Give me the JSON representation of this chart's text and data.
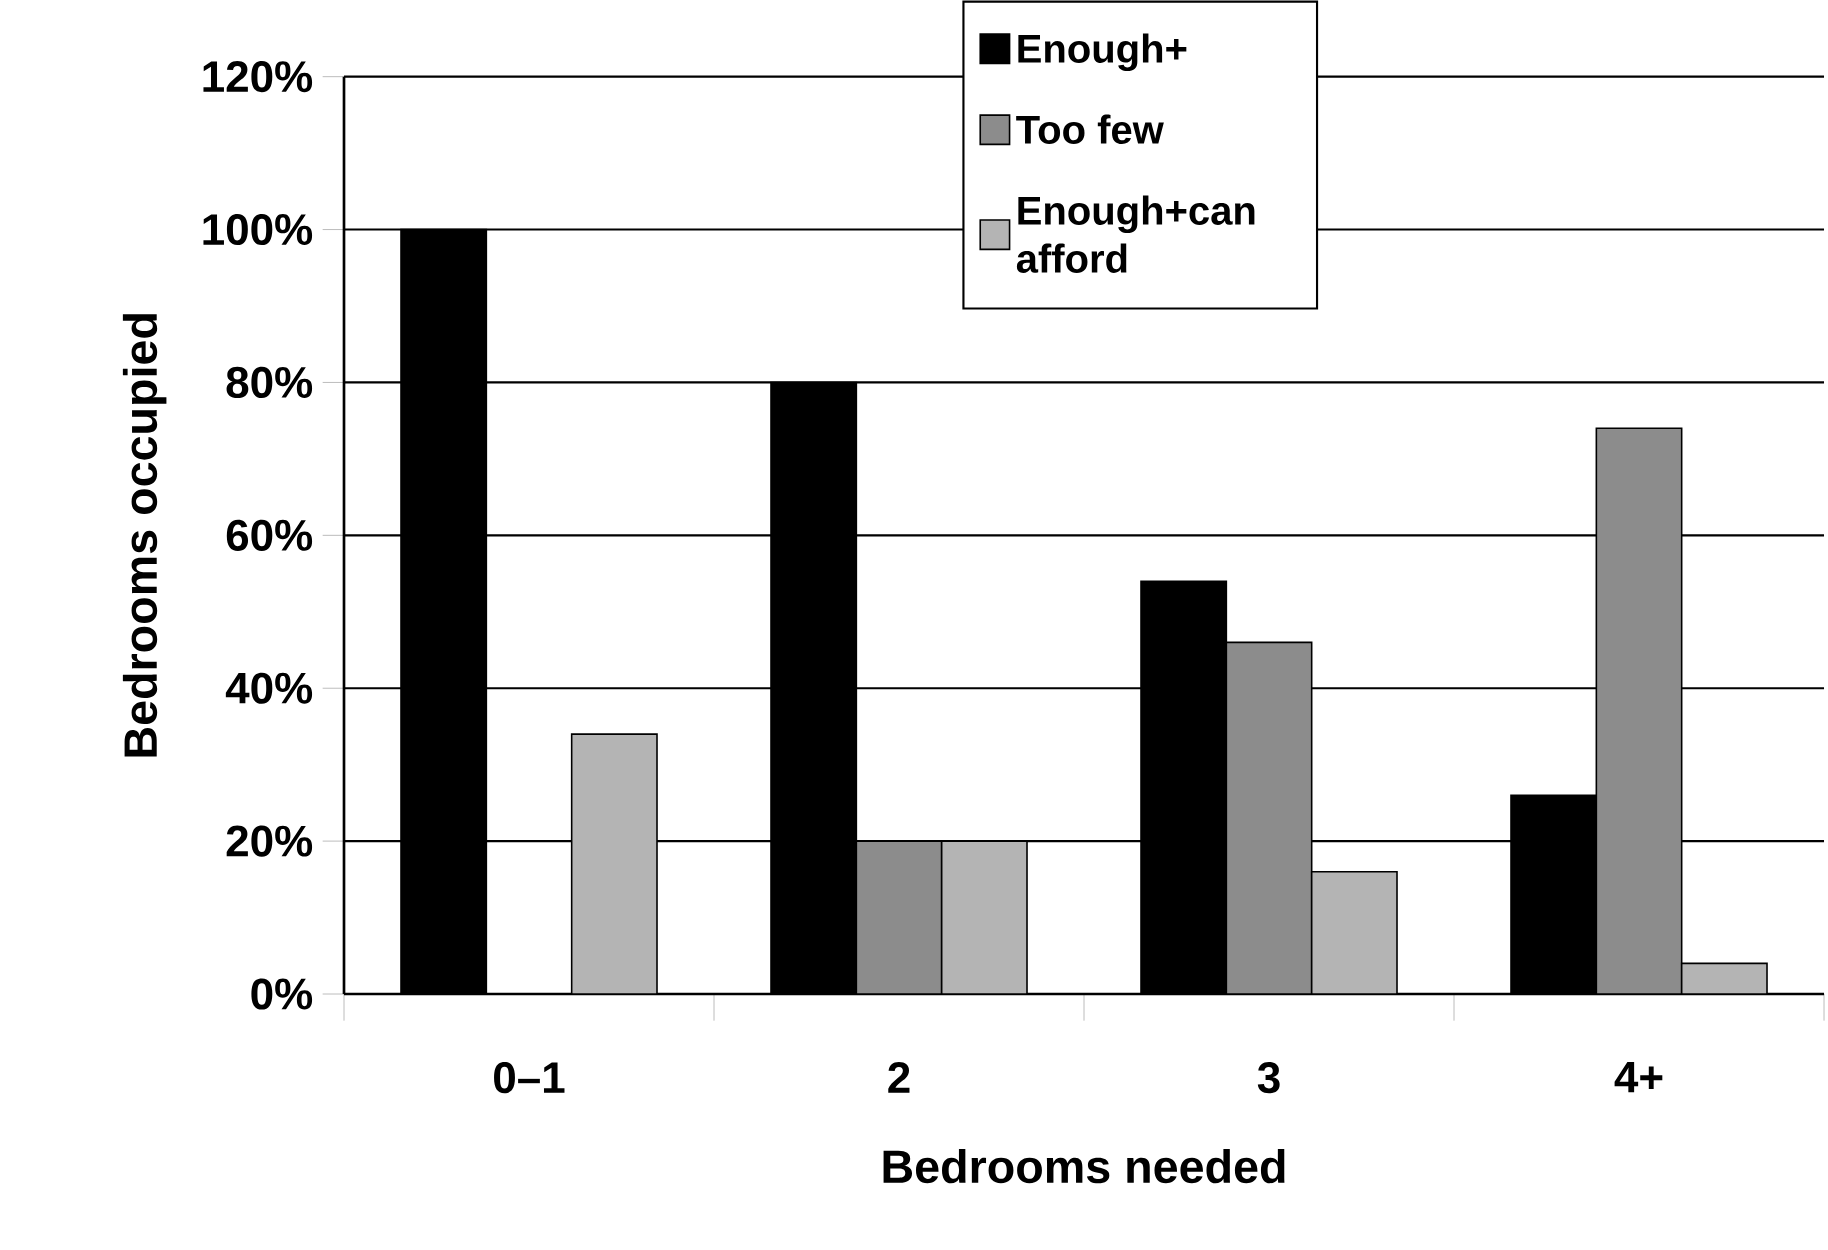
{
  "chart_data": {
    "type": "bar",
    "xlabel": "Bedrooms needed",
    "ylabel": "Bedrooms occupied",
    "categories": [
      "0–1",
      "2",
      "3",
      "4+"
    ],
    "series": [
      {
        "name": "Enough+",
        "color": "#000000",
        "values": [
          100,
          80,
          54,
          26
        ]
      },
      {
        "name": "Too few",
        "color": "#8c8c8c",
        "values": [
          0,
          20,
          46,
          74
        ]
      },
      {
        "name": "Enough+can afford",
        "color": "#b4b4b4",
        "values": [
          34,
          20,
          16,
          4
        ]
      }
    ],
    "ylim": [
      0,
      120
    ],
    "yticks": [
      {
        "value": 0,
        "label": "0%"
      },
      {
        "value": 20,
        "label": "20%"
      },
      {
        "value": 40,
        "label": "40%"
      },
      {
        "value": 60,
        "label": "60%"
      },
      {
        "value": 80,
        "label": "80%"
      },
      {
        "value": 100,
        "label": "100%"
      },
      {
        "value": 120,
        "label": "120%"
      }
    ],
    "grid": "y",
    "legend": "top"
  }
}
